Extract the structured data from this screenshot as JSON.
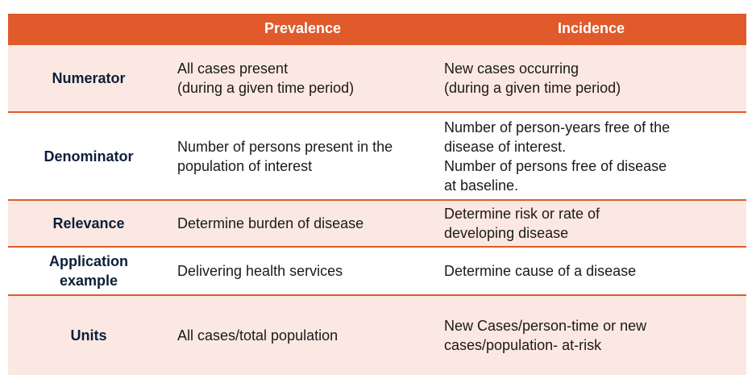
{
  "header": {
    "col1": "",
    "col2": "Prevalence",
    "col3": "Incidence"
  },
  "rows": [
    {
      "label": [
        "Numerator"
      ],
      "prevalence": [
        "All cases present",
        "(during a given time period)"
      ],
      "incidence": [
        "New cases occurring",
        "(during a given time period)"
      ]
    },
    {
      "label": [
        "Denominator"
      ],
      "prevalence": [
        "Number of persons present in the",
        "population of interest"
      ],
      "incidence": [
        "Number of person-years free of the",
        "disease of interest.",
        "Number of persons free of disease",
        "at baseline."
      ]
    },
    {
      "label": [
        "Relevance"
      ],
      "prevalence": [
        "Determine burden of disease"
      ],
      "incidence": [
        "Determine risk or rate of",
        "developing disease"
      ]
    },
    {
      "label": [
        "Application",
        "example"
      ],
      "prevalence": [
        "Delivering health services"
      ],
      "incidence": [
        "Determine cause of a disease"
      ]
    },
    {
      "label": [
        "Units"
      ],
      "prevalence": [
        "All cases/total population"
      ],
      "incidence": [
        "New Cases/person-time or new",
        "cases/population- at-risk"
      ]
    }
  ],
  "colors": {
    "header_bg": "#e05a2b",
    "pink_row": "#fce8e2",
    "white_row": "#ffffff",
    "label_text": "#0b1f3a"
  }
}
